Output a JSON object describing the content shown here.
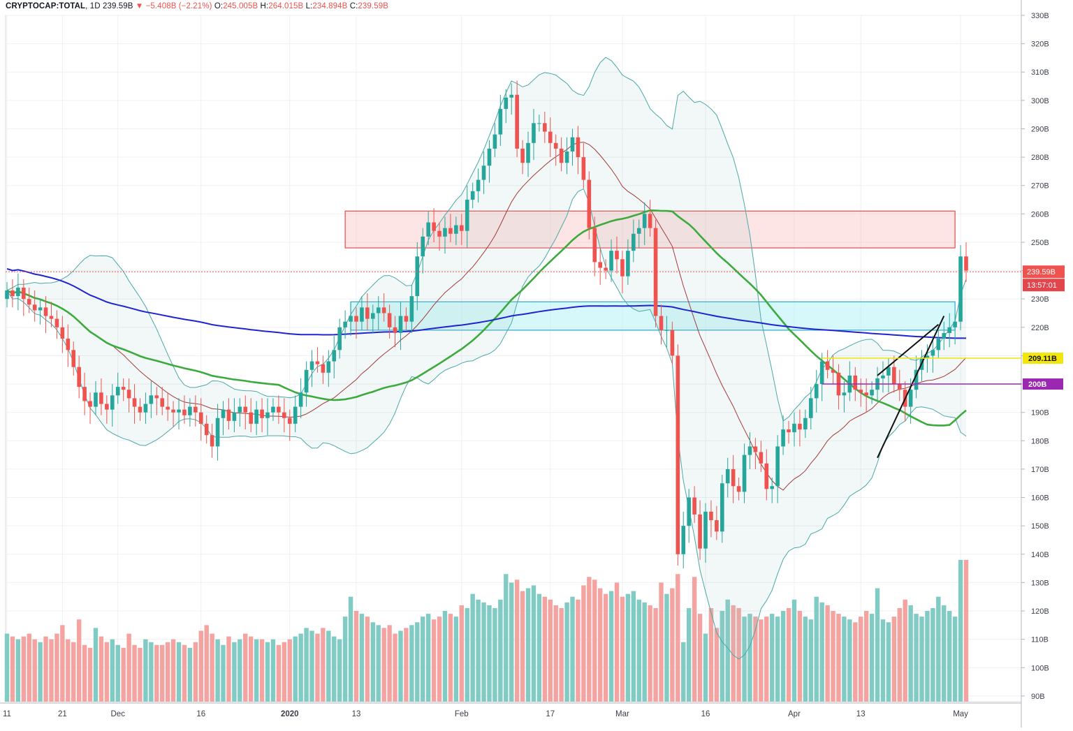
{
  "header": {
    "symbol": "CRYPTOCAP:TOTAL",
    "interval": "1D",
    "last": "239.59B",
    "arrow": "▼",
    "change": "−5.408B (−2.21%)",
    "open_label": "O:",
    "open": "245.005B",
    "high_label": "H:",
    "high": "264.015B",
    "low_label": "L:",
    "low": "234.894B",
    "close_label": "C:",
    "close": "239.59B"
  },
  "colors": {
    "up": "#26a69a",
    "down": "#ef5350",
    "up_volume": "#80cbc4",
    "down_volume": "#f4a3a1",
    "ma200": "#1f23d1",
    "ma50": "#3caa3c",
    "bb_mid": "#a33a3a",
    "bb_band": "#4aa8a8",
    "resistance_zone": "#f8b4b4",
    "support_zone": "#a6f0f5",
    "level_yellow": "#f2e60d",
    "level_purple": "#9c27b0"
  },
  "chart_data": {
    "type": "candlestick",
    "title": "CRYPTOCAP:TOTAL, 1D",
    "ylim": [
      88,
      330
    ],
    "y_ticks": [
      "330B",
      "320B",
      "310B",
      "300B",
      "290B",
      "280B",
      "270B",
      "260B",
      "250B",
      "240B",
      "230B",
      "220B",
      "210B",
      "200B",
      "190B",
      "180B",
      "170B",
      "160B",
      "150B",
      "140B",
      "130B",
      "120B",
      "110B",
      "100B",
      "90B"
    ],
    "y_tick_values": [
      330,
      320,
      310,
      300,
      290,
      280,
      270,
      260,
      250,
      240,
      230,
      220,
      210,
      200,
      190,
      180,
      170,
      160,
      150,
      140,
      130,
      120,
      110,
      100,
      90
    ],
    "x_ticks": [
      {
        "label": "11",
        "index": 0
      },
      {
        "label": "21",
        "index": 10
      },
      {
        "label": "Dec",
        "index": 20
      },
      {
        "label": "16",
        "index": 35
      },
      {
        "label": "2020",
        "index": 51
      },
      {
        "label": "13",
        "index": 63
      },
      {
        "label": "Feb",
        "index": 82
      },
      {
        "label": "17",
        "index": 98
      },
      {
        "label": "Mar",
        "index": 111
      },
      {
        "label": "16",
        "index": 126
      },
      {
        "label": "Apr",
        "index": 142
      },
      {
        "label": "13",
        "index": 154
      },
      {
        "label": "May",
        "index": 172
      }
    ],
    "current_price": 239.59,
    "current_price_label": "239.59B",
    "countdown": "13:57:01",
    "levels": [
      {
        "value": 209.11,
        "label": "209.11B",
        "color": "#f2e60d",
        "from_index": 147
      },
      {
        "value": 200,
        "label": "200B",
        "color": "#9c27b0",
        "from_index": 147
      }
    ],
    "zones": [
      {
        "from_index": 61,
        "to_index": 171,
        "top": 261,
        "bottom": 248,
        "name": "resistance"
      },
      {
        "from_index": 62,
        "to_index": 171,
        "top": 229,
        "bottom": 219,
        "name": "support"
      }
    ],
    "trendlines": [
      {
        "i1": 157,
        "v1": 174,
        "i2": 169,
        "v2": 224
      },
      {
        "i1": 157,
        "v1": 203,
        "i2": 168,
        "v2": 221
      }
    ],
    "volume_range": [
      0,
      140
    ],
    "ohlc_closes": [
      233,
      231,
      234,
      230,
      228,
      226,
      227,
      224,
      223,
      220,
      216,
      212,
      206,
      199,
      194,
      192,
      197,
      193,
      191,
      196,
      199,
      198,
      195,
      192,
      190,
      193,
      196,
      195,
      192,
      191,
      190,
      191,
      189,
      192,
      190,
      186,
      182,
      178,
      188,
      191,
      187,
      190,
      192,
      190,
      186,
      191,
      188,
      190,
      192,
      190,
      188,
      186,
      192,
      197,
      205,
      208,
      207,
      204,
      208,
      212,
      220,
      222,
      224,
      222,
      227,
      223,
      225,
      227,
      225,
      220,
      218,
      224,
      222,
      231,
      245,
      252,
      257,
      254,
      252,
      255,
      253,
      256,
      254,
      265,
      268,
      272,
      277,
      283,
      288,
      297,
      301,
      302,
      283,
      278,
      285,
      292,
      292,
      289,
      285,
      283,
      278,
      282,
      287,
      280,
      272,
      255,
      243,
      241,
      240,
      247,
      244,
      238,
      247,
      253,
      255,
      260,
      255,
      224,
      219,
      219,
      210,
      140,
      150,
      160,
      154,
      142,
      155,
      152,
      148,
      165,
      170,
      164,
      162,
      175,
      178,
      176,
      172,
      163,
      164,
      178,
      184,
      183,
      186,
      184,
      188,
      195,
      200,
      208,
      205,
      204,
      196,
      197,
      203,
      198,
      197,
      196,
      198,
      202,
      203,
      206,
      200,
      198,
      192,
      198,
      205,
      209,
      210,
      212,
      216,
      218,
      220,
      222,
      245,
      240
    ],
    "ohlc_opens": [
      230,
      233,
      231,
      234,
      230,
      228,
      226,
      227,
      224,
      223,
      220,
      216,
      212,
      206,
      199,
      194,
      192,
      197,
      193,
      191,
      196,
      199,
      198,
      195,
      192,
      190,
      193,
      196,
      195,
      192,
      191,
      190,
      191,
      189,
      192,
      190,
      186,
      182,
      178,
      188,
      191,
      187,
      190,
      192,
      190,
      186,
      191,
      188,
      190,
      192,
      190,
      188,
      186,
      192,
      197,
      205,
      208,
      207,
      204,
      208,
      212,
      220,
      222,
      224,
      222,
      227,
      223,
      225,
      227,
      225,
      220,
      218,
      224,
      222,
      231,
      245,
      252,
      257,
      254,
      252,
      255,
      253,
      256,
      254,
      265,
      268,
      272,
      277,
      283,
      288,
      297,
      301,
      302,
      283,
      278,
      285,
      292,
      292,
      289,
      285,
      283,
      278,
      282,
      287,
      280,
      272,
      255,
      243,
      241,
      240,
      247,
      244,
      238,
      247,
      253,
      255,
      260,
      255,
      224,
      219,
      219,
      210,
      140,
      150,
      160,
      154,
      142,
      155,
      152,
      148,
      165,
      170,
      164,
      162,
      175,
      178,
      176,
      172,
      163,
      164,
      178,
      184,
      183,
      186,
      184,
      188,
      195,
      200,
      208,
      205,
      204,
      196,
      197,
      203,
      198,
      197,
      196,
      198,
      202,
      203,
      206,
      200,
      198,
      192,
      198,
      205,
      209,
      210,
      212,
      216,
      218,
      220,
      222,
      245
    ],
    "ohlc_highs_pad": 3,
    "ohlc_lows_pad": 3,
    "volumes": [
      112,
      111,
      110,
      111,
      112,
      110,
      109,
      111,
      110,
      112,
      115,
      110,
      109,
      117,
      108,
      107,
      114,
      111,
      109,
      110,
      108,
      107,
      112,
      108,
      107,
      110,
      109,
      108,
      108,
      109,
      110,
      109,
      108,
      107,
      109,
      113,
      115,
      112,
      110,
      108,
      111,
      109,
      110,
      112,
      111,
      110,
      110,
      109,
      110,
      108,
      109,
      110,
      111,
      112,
      114,
      113,
      112,
      114,
      113,
      111,
      110,
      118,
      125,
      120,
      119,
      118,
      116,
      115,
      114,
      115,
      112,
      113,
      114,
      115,
      116,
      118,
      119,
      117,
      118,
      120,
      119,
      118,
      122,
      121,
      126,
      124,
      123,
      122,
      121,
      124,
      133,
      130,
      131,
      127,
      128,
      129,
      126,
      125,
      124,
      122,
      121,
      123,
      125,
      124,
      129,
      132,
      131,
      128,
      126,
      127,
      130,
      125,
      126,
      127,
      124,
      123,
      122,
      121,
      130,
      126,
      128,
      133,
      109,
      121,
      132,
      119,
      112,
      121,
      114,
      120,
      124,
      122,
      121,
      118,
      119,
      118,
      117,
      118,
      119,
      118,
      120,
      121,
      124,
      120,
      118,
      117,
      125,
      123,
      122,
      120,
      119,
      118,
      117,
      116,
      118,
      120,
      119,
      128,
      117,
      116,
      118,
      121,
      124,
      122,
      119,
      118,
      120,
      121,
      125,
      122,
      120,
      118,
      138,
      138
    ]
  }
}
